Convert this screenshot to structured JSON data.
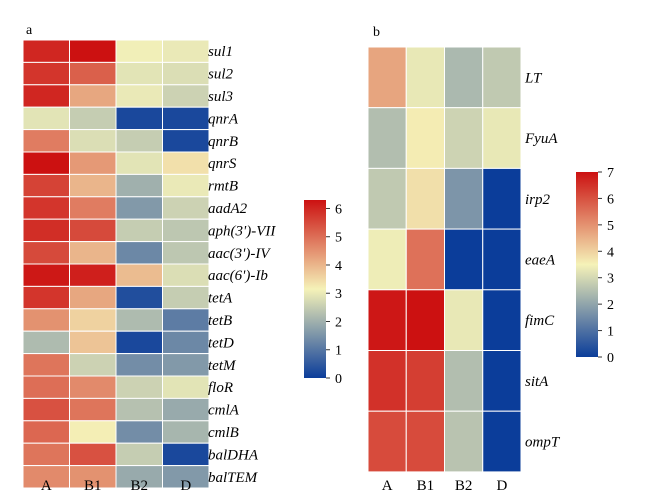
{
  "colorscale": [
    "#0b3d9a",
    "#f5f2b8",
    "#cc1111"
  ],
  "chart_data": [
    {
      "type": "heatmap",
      "panel_label": "a",
      "columns": [
        "A",
        "B1",
        "B2",
        "D"
      ],
      "rows": [
        "sul1",
        "sul2",
        "sul3",
        "qnrA",
        "qnrB",
        "qnrS",
        "rmtB",
        "aadA2",
        "aph(3')-VII",
        "aac(3')-IV",
        "aac(6')-Ib",
        "tetA",
        "tetB",
        "tetD",
        "tetM",
        "floR",
        "cmlA",
        "cmlB",
        "balDHA",
        "balTEM"
      ],
      "values": [
        [
          6.0,
          6.3,
          3.1,
          3.0
        ],
        [
          5.8,
          5.2,
          2.9,
          2.8
        ],
        [
          6.0,
          4.2,
          3.0,
          2.6
        ],
        [
          2.9,
          2.5,
          0.2,
          0.2
        ],
        [
          4.8,
          2.8,
          2.5,
          0.2
        ],
        [
          6.3,
          4.4,
          2.9,
          3.4
        ],
        [
          5.6,
          4.0,
          2.0,
          3.0
        ],
        [
          5.8,
          4.8,
          1.6,
          2.6
        ],
        [
          5.9,
          5.5,
          2.5,
          2.4
        ],
        [
          5.5,
          4.0,
          1.3,
          2.4
        ],
        [
          6.2,
          6.1,
          3.9,
          2.8
        ],
        [
          5.8,
          4.2,
          0.3,
          2.5
        ],
        [
          4.5,
          3.6,
          2.2,
          1.1
        ],
        [
          2.2,
          3.8,
          0.2,
          1.3
        ],
        [
          4.9,
          2.6,
          1.4,
          1.6
        ],
        [
          5.0,
          4.6,
          2.6,
          2.9
        ],
        [
          5.4,
          4.9,
          2.3,
          1.9
        ],
        [
          5.1,
          3.2,
          1.4,
          2.1
        ],
        [
          4.9,
          5.4,
          2.5,
          0.2
        ],
        [
          4.6,
          4.5,
          1.9,
          1.6
        ]
      ],
      "colorbar": {
        "ticks": [
          0,
          1,
          2,
          3,
          4,
          5,
          6
        ],
        "range": [
          0,
          6.3
        ]
      }
    },
    {
      "type": "heatmap",
      "panel_label": "b",
      "columns": [
        "A",
        "B1",
        "B2",
        "D"
      ],
      "rows": [
        "LT",
        "FyuA",
        "irp2",
        "eaeA",
        "fimC",
        "sitA",
        "ompT"
      ],
      "values": [
        [
          4.7,
          3.3,
          2.4,
          2.7
        ],
        [
          2.5,
          3.6,
          2.9,
          3.3
        ],
        [
          2.7,
          3.8,
          1.7,
          0.0
        ],
        [
          3.4,
          5.5,
          0.0,
          0.0
        ],
        [
          6.9,
          7.0,
          3.3,
          0.0
        ],
        [
          6.5,
          6.3,
          2.5,
          0.0
        ],
        [
          6.1,
          6.1,
          2.6,
          0.0
        ]
      ],
      "colorbar": {
        "ticks": [
          0,
          1,
          2,
          3,
          4,
          5,
          6,
          7
        ],
        "range": [
          0,
          7
        ]
      }
    }
  ]
}
